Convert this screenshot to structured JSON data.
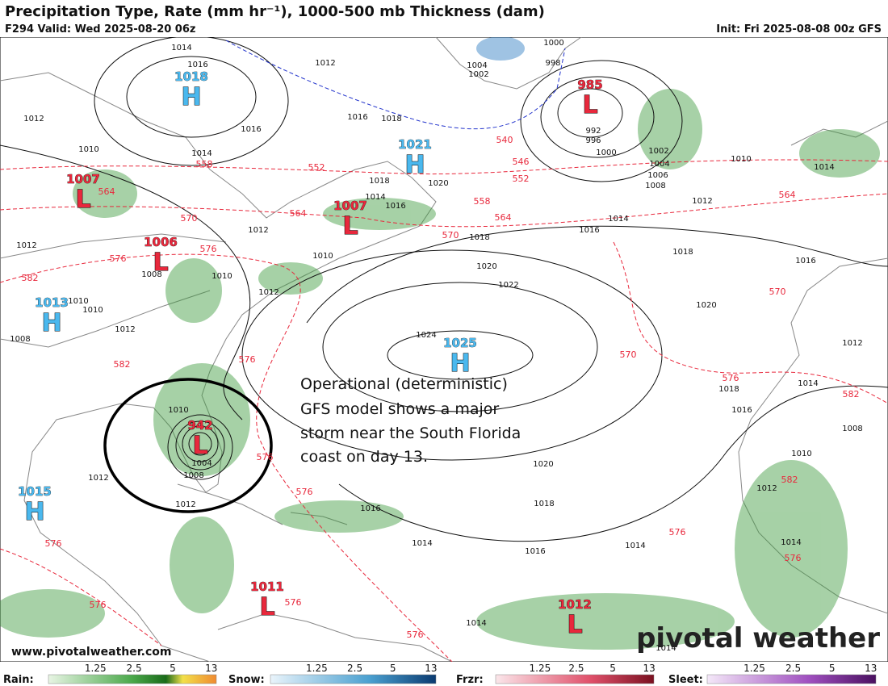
{
  "header": {
    "title": "Precipitation Type, Rate (mm hr⁻¹), 1000-500 mb Thickness (dam)",
    "valid": "F294 Valid: Wed 2025-08-20 06z",
    "init": "Init: Fri 2025-08-08 00z GFS"
  },
  "annotation": [
    "Operational (deterministic)",
    "GFS model shows a major",
    "storm near the South Florida",
    "coast on day 13."
  ],
  "pressure_centers": [
    {
      "kind": "H",
      "value": 1018
    },
    {
      "kind": "H",
      "value": 1021
    },
    {
      "kind": "L",
      "value": 985
    },
    {
      "kind": "L",
      "value": 1007
    },
    {
      "kind": "L",
      "value": 1007
    },
    {
      "kind": "L",
      "value": 1006
    },
    {
      "kind": "H",
      "value": 1013
    },
    {
      "kind": "H",
      "value": 1025
    },
    {
      "kind": "L",
      "value": 942
    },
    {
      "kind": "H",
      "value": 1015
    },
    {
      "kind": "L",
      "value": 1011
    },
    {
      "kind": "L",
      "value": 1012
    }
  ],
  "isobar_labels": [
    1014,
    1016,
    1012,
    1012,
    1016,
    1016,
    1018,
    1010,
    1014,
    1018,
    1020,
    1014,
    1016,
    1012,
    1012,
    1008,
    1010,
    1010,
    1012,
    1010,
    1010,
    1012,
    1008,
    1018,
    1020,
    1022,
    1024,
    1000,
    998,
    1004,
    1002,
    992,
    996,
    1000,
    1002,
    1004,
    1006,
    1008,
    1012,
    1014,
    1016,
    1018,
    1016,
    1020,
    1010,
    1014,
    1018,
    1016,
    1014,
    1012,
    1008,
    1010,
    1012,
    1014,
    1014,
    1016,
    1018,
    1020,
    1016,
    1014,
    1012,
    1010,
    1004,
    1008,
    1012,
    1014,
    1014
  ],
  "thickness_labels": [
    558,
    552,
    564,
    570,
    564,
    576,
    576,
    582,
    540,
    546,
    552,
    558,
    564,
    570,
    564,
    570,
    570,
    576,
    582,
    582,
    576,
    582,
    576,
    576,
    576,
    576,
    576,
    576,
    576,
    576
  ],
  "legend": [
    {
      "label": "Rain:",
      "ticks": [
        "1.25",
        "2.5",
        "5",
        "13"
      ]
    },
    {
      "label": "Snow:",
      "ticks": [
        "1.25",
        "2.5",
        "5",
        "13"
      ]
    },
    {
      "label": "Frzr:",
      "ticks": [
        "1.25",
        "2.5",
        "5",
        "13"
      ]
    },
    {
      "label": "Sleet:",
      "ticks": [
        "1.25",
        "2.5",
        "5",
        "13"
      ]
    }
  ],
  "footer": {
    "url": "www.pivotalweather.com",
    "brand": "pivotal weather"
  }
}
